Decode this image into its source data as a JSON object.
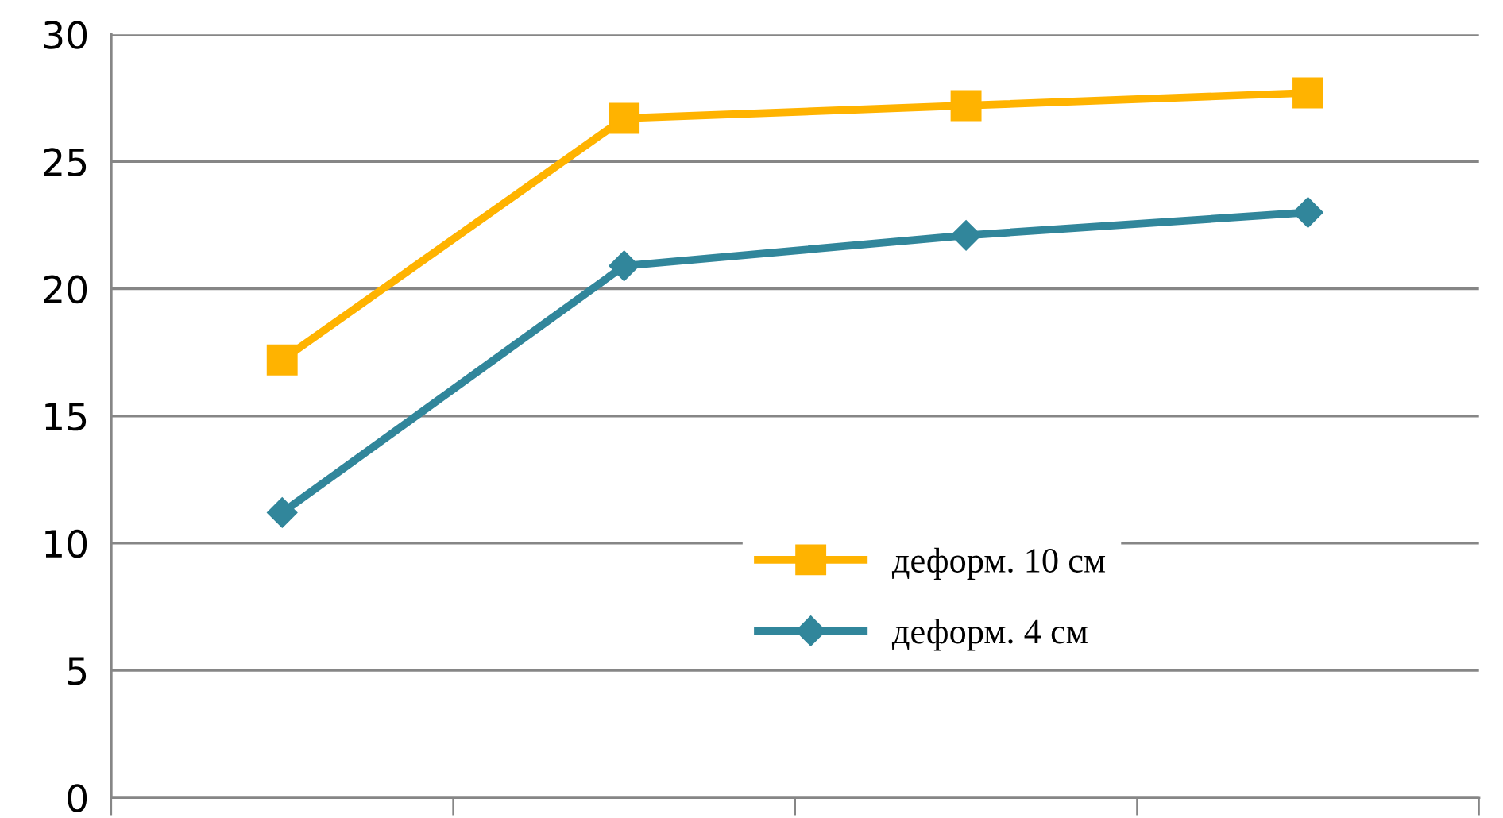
{
  "chart_data": {
    "type": "line",
    "categories": [
      null,
      null,
      null,
      null
    ],
    "series": [
      {
        "name": "деформ. 10 см",
        "color": "#ffb300",
        "marker": "square",
        "values": [
          17.2,
          26.7,
          27.2,
          27.7
        ]
      },
      {
        "name": "деформ. 4 см",
        "color": "#31869b",
        "marker": "diamond",
        "values": [
          11.2,
          20.9,
          22.1,
          23.0
        ]
      }
    ],
    "ylim": [
      0,
      30
    ],
    "yticks": [
      0,
      5,
      10,
      15,
      20,
      25,
      30
    ],
    "grid": "y",
    "legend": "bottom right",
    "line_style": "solid"
  }
}
